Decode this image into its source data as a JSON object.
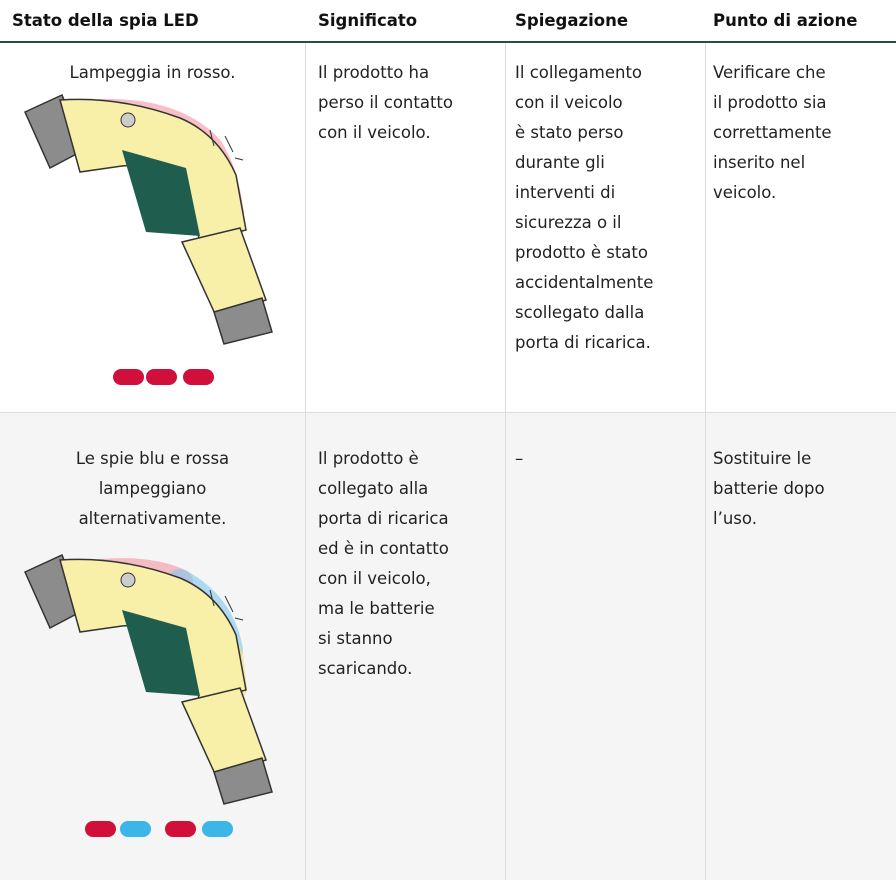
{
  "table": {
    "header": [
      "Stato della spia LED",
      "Significato",
      "Spiegazione",
      "Punto di azione"
    ],
    "rows": [
      [
        [
          "Lampeggia in rosso."
        ],
        [
          "Il prodotto ha",
          "perso il contatto",
          "con il veicolo."
        ],
        [
          "Il collegamento",
          "con il veicolo",
          "è stato perso",
          "durante gli",
          "interventi di",
          "sicurezza o il",
          "prodotto è stato",
          "accidentalmente",
          "scollegato dalla",
          "porta di ricarica."
        ],
        [
          "Verificare che",
          "il prodotto sia",
          "correttamente",
          "inserito nel",
          "veicolo."
        ]
      ],
      [
        [
          "Le spie blu e rossa",
          "lampeggiano",
          "alternativamente."
        ],
        [
          "Il prodotto è",
          "collegato alla",
          "porta di ricarica",
          "ed è in contatto",
          "con il veicolo,",
          "ma le batterie",
          "si stanno",
          "scaricando."
        ],
        [
          "–"
        ],
        [
          "Sostituire le",
          "batterie dopo",
          "l’uso."
        ]
      ]
    ]
  }
}
